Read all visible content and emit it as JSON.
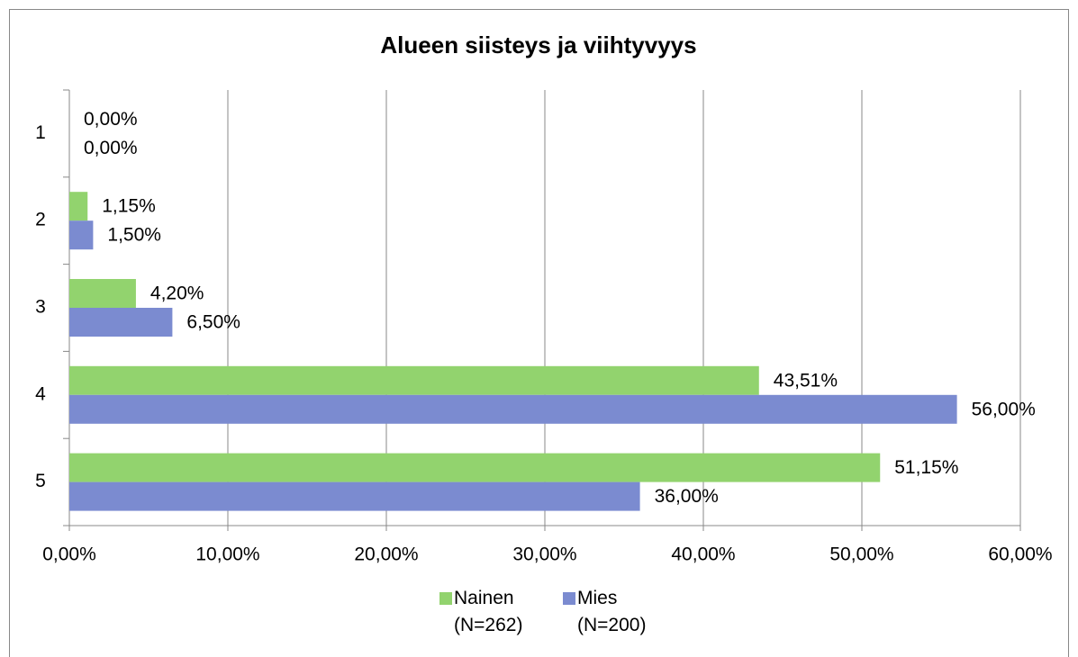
{
  "chart_data": {
    "type": "bar",
    "orientation": "horizontal",
    "title": "Alueen siisteys ja viihtyvyys",
    "categories": [
      "1",
      "2",
      "3",
      "4",
      "5"
    ],
    "series": [
      {
        "name": "Nainen (N=262)",
        "color": "#92d36e",
        "values": [
          0,
          1.15,
          4.2,
          43.51,
          51.15
        ],
        "value_labels": [
          "0,00%",
          "1,15%",
          "4,20%",
          "43,51%",
          "51,15%"
        ]
      },
      {
        "name": "Mies (N=200)",
        "color": "#7b8bd0",
        "values": [
          0,
          1.5,
          6.5,
          56,
          36
        ],
        "value_labels": [
          "0,00%",
          "1,50%",
          "6,50%",
          "56,00%",
          "36,00%"
        ]
      }
    ],
    "xlim": [
      0,
      60
    ],
    "xticks": [
      {
        "value": 0,
        "label": "0,00%"
      },
      {
        "value": 10,
        "label": "10,00%"
      },
      {
        "value": 20,
        "label": "20,00%"
      },
      {
        "value": 30,
        "label": "30,00%"
      },
      {
        "value": 40,
        "label": "40,00%"
      },
      {
        "value": 50,
        "label": "50,00%"
      },
      {
        "value": 60,
        "label": "60,00%"
      }
    ],
    "grid": true,
    "legend": "bottom"
  }
}
